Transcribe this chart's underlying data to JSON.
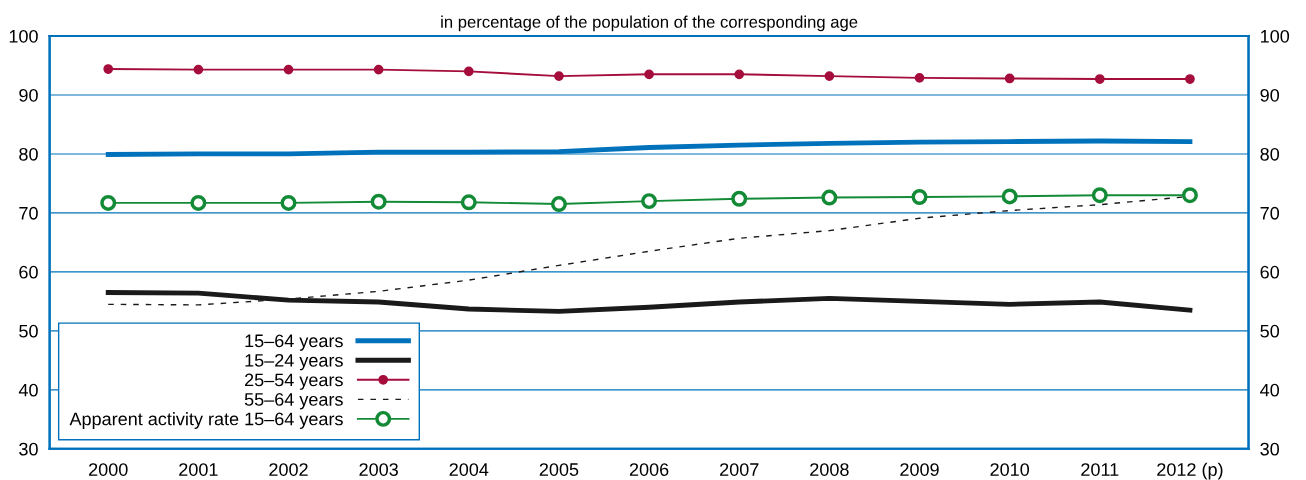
{
  "chart_data": {
    "type": "line",
    "title": "in percentage of the population of the corresponding age",
    "categories": [
      "2000",
      "2001",
      "2002",
      "2003",
      "2004",
      "2005",
      "2006",
      "2007",
      "2008",
      "2009",
      "2010",
      "2011",
      "2012 (p)"
    ],
    "series": [
      {
        "name": "15–64 years",
        "color": "#0072bc",
        "values": [
          79.9,
          80.0,
          80.0,
          80.3,
          80.3,
          80.4,
          81.1,
          81.5,
          81.8,
          82.0,
          82.1,
          82.2,
          82.1
        ]
      },
      {
        "name": "15–24 years",
        "color": "#1a1a1a",
        "values": [
          56.5,
          56.4,
          55.2,
          54.9,
          53.7,
          53.3,
          54.0,
          54.9,
          55.5,
          55.0,
          54.5,
          54.9,
          53.5
        ]
      },
      {
        "name": "25–54 years",
        "color": "#a50d3c",
        "marker": "circle",
        "values": [
          94.4,
          94.3,
          94.3,
          94.3,
          94.0,
          93.2,
          93.5,
          93.5,
          93.2,
          92.9,
          92.8,
          92.7,
          92.7
        ]
      },
      {
        "name": "55–64 years",
        "color": "#1a1a1a",
        "line_style": "dashed",
        "values": [
          54.5,
          54.4,
          55.4,
          56.7,
          58.6,
          61.1,
          63.5,
          65.7,
          67.0,
          69.1,
          70.4,
          71.4,
          72.8
        ]
      },
      {
        "name": "Apparent activity rate 15–64 years",
        "color": "#138a36",
        "marker": "circle",
        "values": [
          71.7,
          71.7,
          71.7,
          71.9,
          71.8,
          71.5,
          72.0,
          72.4,
          72.6,
          72.7,
          72.8,
          73.0,
          73.0
        ]
      }
    ],
    "ylim": [
      30,
      100
    ],
    "yticks": [
      30,
      40,
      50,
      60,
      70,
      80,
      90,
      100
    ],
    "y2lim": [
      30,
      100
    ],
    "y2ticks": [
      30,
      40,
      50,
      60,
      70,
      80,
      90,
      100
    ],
    "grid": true,
    "legend": "bottom left"
  }
}
